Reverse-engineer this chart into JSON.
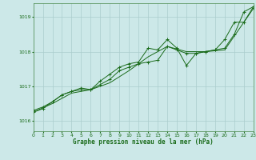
{
  "xlabel": "Graphe pression niveau de la mer (hPa)",
  "xlim": [
    0,
    23
  ],
  "ylim": [
    1015.7,
    1019.4
  ],
  "yticks": [
    1016,
    1017,
    1018,
    1019
  ],
  "xticks": [
    0,
    1,
    2,
    3,
    4,
    5,
    6,
    7,
    8,
    9,
    10,
    11,
    12,
    13,
    14,
    15,
    16,
    17,
    18,
    19,
    20,
    21,
    22,
    23
  ],
  "background_color": "#cce8e8",
  "grid_color": "#aacccc",
  "line_color": "#1a6b1a",
  "series1": [
    [
      0,
      1016.3
    ],
    [
      1,
      1016.4
    ],
    [
      2,
      1016.55
    ],
    [
      3,
      1016.75
    ],
    [
      4,
      1016.85
    ],
    [
      5,
      1016.9
    ],
    [
      6,
      1016.9
    ],
    [
      7,
      1017.05
    ],
    [
      8,
      1017.2
    ],
    [
      9,
      1017.45
    ],
    [
      10,
      1017.55
    ],
    [
      11,
      1017.65
    ],
    [
      12,
      1017.7
    ],
    [
      13,
      1017.75
    ],
    [
      14,
      1018.15
    ],
    [
      15,
      1018.05
    ],
    [
      16,
      1017.95
    ],
    [
      17,
      1017.95
    ],
    [
      18,
      1018.0
    ],
    [
      19,
      1018.05
    ],
    [
      20,
      1018.35
    ],
    [
      21,
      1018.85
    ],
    [
      22,
      1018.85
    ],
    [
      23,
      1019.25
    ]
  ],
  "series2": [
    [
      0,
      1016.25
    ],
    [
      1,
      1016.35
    ],
    [
      2,
      1016.55
    ],
    [
      3,
      1016.75
    ],
    [
      4,
      1016.85
    ],
    [
      5,
      1016.95
    ],
    [
      6,
      1016.9
    ],
    [
      7,
      1017.15
    ],
    [
      8,
      1017.35
    ],
    [
      9,
      1017.55
    ],
    [
      10,
      1017.65
    ],
    [
      11,
      1017.7
    ],
    [
      12,
      1018.1
    ],
    [
      13,
      1018.05
    ],
    [
      14,
      1018.35
    ],
    [
      15,
      1018.1
    ],
    [
      16,
      1017.6
    ],
    [
      17,
      1017.95
    ],
    [
      18,
      1018.0
    ],
    [
      19,
      1018.05
    ],
    [
      20,
      1018.1
    ],
    [
      21,
      1018.5
    ],
    [
      22,
      1019.15
    ],
    [
      23,
      1019.3
    ]
  ],
  "series3": [
    [
      0,
      1016.25
    ],
    [
      2,
      1016.5
    ],
    [
      4,
      1016.8
    ],
    [
      6,
      1016.9
    ],
    [
      8,
      1017.1
    ],
    [
      10,
      1017.45
    ],
    [
      12,
      1017.85
    ],
    [
      14,
      1018.15
    ],
    [
      16,
      1018.0
    ],
    [
      18,
      1018.0
    ],
    [
      20,
      1018.05
    ],
    [
      22,
      1018.85
    ],
    [
      23,
      1019.3
    ]
  ]
}
